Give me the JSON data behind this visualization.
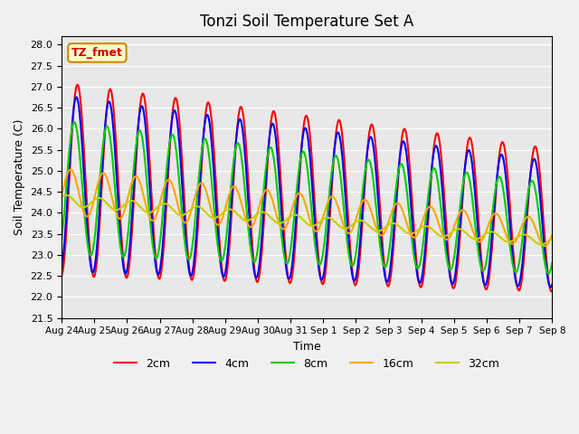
{
  "title": "Tonzi Soil Temperature Set A",
  "xlabel": "Time",
  "ylabel": "Soil Temperature (C)",
  "ylim": [
    21.5,
    28.2
  ],
  "annotation": "TZ_fmet",
  "legend": [
    "2cm",
    "4cm",
    "8cm",
    "16cm",
    "32cm"
  ],
  "colors": [
    "#FF0000",
    "#0000FF",
    "#00CC00",
    "#FFA500",
    "#CCCC00"
  ],
  "line_widths": [
    1.5,
    1.5,
    1.5,
    1.5,
    1.5
  ],
  "plot_bg": "#E8E8E8",
  "tick_labels": [
    "Aug 24",
    "Aug 25",
    "Aug 26",
    "Aug 27",
    "Aug 28",
    "Aug 29",
    "Aug 30",
    "Aug 31",
    "Sep 1",
    "Sep 2",
    "Sep 3",
    "Sep 4",
    "Sep 5",
    "Sep 6",
    "Sep 7",
    "Sep 8"
  ],
  "n_days": 15,
  "pts_per_day": 48
}
